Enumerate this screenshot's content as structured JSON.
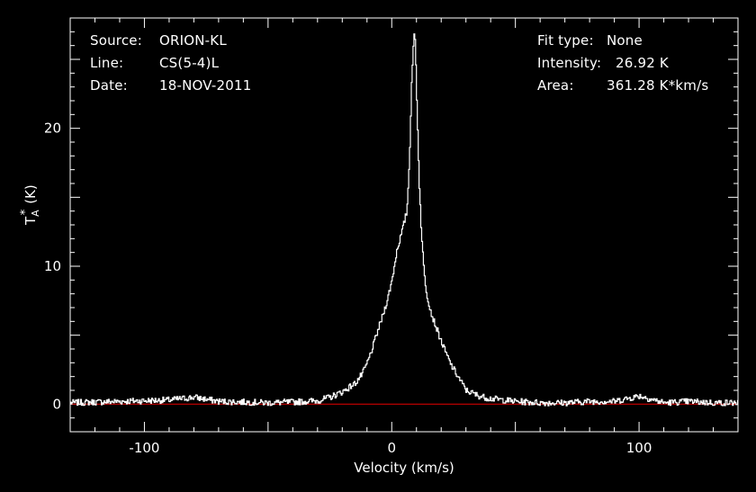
{
  "header": {
    "source_label": "Source:",
    "source_value": "ORION-KL",
    "line_label": "Line:",
    "line_value": "CS(5-4)L",
    "date_label": "Date:",
    "date_value": "18-NOV-2011",
    "fit_label": "Fit type:",
    "fit_value": "None",
    "intensity_label": "Intensity:",
    "intensity_value": "26.92 K",
    "area_label": "Area:",
    "area_value": "361.28 K*km/s"
  },
  "chart_data": {
    "type": "line",
    "title": "",
    "xlabel": "Velocity (km/s)",
    "ylabel_main": "T",
    "ylabel_sup": "*",
    "ylabel_sub": "A",
    "ylabel_unit": "(K)",
    "xlim": [
      -130,
      140
    ],
    "ylim": [
      -2,
      28
    ],
    "xticks": [
      -100,
      0,
      100
    ],
    "xtick_labels": [
      "-100",
      "0",
      "100"
    ],
    "yticks": [
      0,
      10,
      20
    ],
    "ytick_labels": [
      "0",
      "10",
      "20"
    ],
    "grid": false,
    "colors": {
      "background": "#000000",
      "spectrum": "#ffffff",
      "baseline": "#cc0000",
      "axes": "#ffffff"
    },
    "baseline": {
      "y": 0
    },
    "series": [
      {
        "x": [
          -130,
          -110,
          -90,
          -80,
          -70,
          -50,
          -40,
          -30,
          -25,
          -20,
          -15,
          -12,
          -10,
          -8,
          -6,
          -4,
          -2,
          0,
          2,
          4,
          6,
          7,
          8,
          9,
          9.5,
          10,
          11,
          12,
          13,
          14,
          16,
          18,
          20,
          22,
          24,
          26,
          28,
          30,
          35,
          40,
          50,
          60,
          70,
          80,
          90,
          100,
          102,
          110,
          120,
          130,
          140
        ],
        "y": [
          0.1,
          0.2,
          0.3,
          0.5,
          0.2,
          0.1,
          0.15,
          0.25,
          0.5,
          0.9,
          1.5,
          2.2,
          3.0,
          4.0,
          5.2,
          6.3,
          7.5,
          9.0,
          11.2,
          12.5,
          14.0,
          17.5,
          24.0,
          26.92,
          26.0,
          22.0,
          16.0,
          12.0,
          9.5,
          8.0,
          6.5,
          5.5,
          4.5,
          3.6,
          2.8,
          2.2,
          1.6,
          1.0,
          0.6,
          0.4,
          0.2,
          0.1,
          0.1,
          0.2,
          0.2,
          0.6,
          0.5,
          0.1,
          0.2,
          0.1,
          0.1
        ]
      }
    ]
  }
}
